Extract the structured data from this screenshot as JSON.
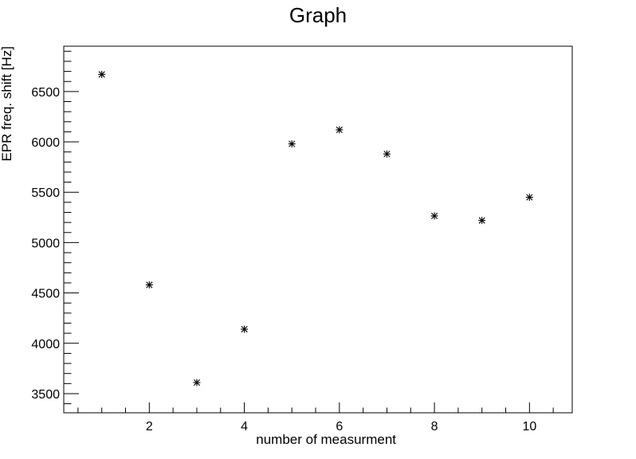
{
  "chart_data": {
    "type": "scatter",
    "title": "Graph",
    "xlabel": "number of measurment",
    "ylabel": "EPR freq. shift [Hz]",
    "xlim": [
      0.2,
      10.9
    ],
    "ylim": [
      3310,
      6950
    ],
    "x_ticks": [
      2,
      4,
      6,
      8,
      10
    ],
    "x_tick_labels": [
      "2",
      "4",
      "6",
      "8",
      "10"
    ],
    "y_ticks": [
      3500,
      4000,
      4500,
      5000,
      5500,
      6000,
      6500
    ],
    "y_tick_labels": [
      "3500",
      "4000",
      "4500",
      "5000",
      "5500",
      "6000",
      "6500"
    ],
    "grid": false,
    "marker": "*",
    "x": [
      1,
      2,
      3,
      4,
      5,
      6,
      7,
      8,
      9,
      10
    ],
    "y": [
      6670,
      4580,
      3610,
      4140,
      5980,
      6120,
      5880,
      5265,
      5220,
      5450
    ]
  }
}
